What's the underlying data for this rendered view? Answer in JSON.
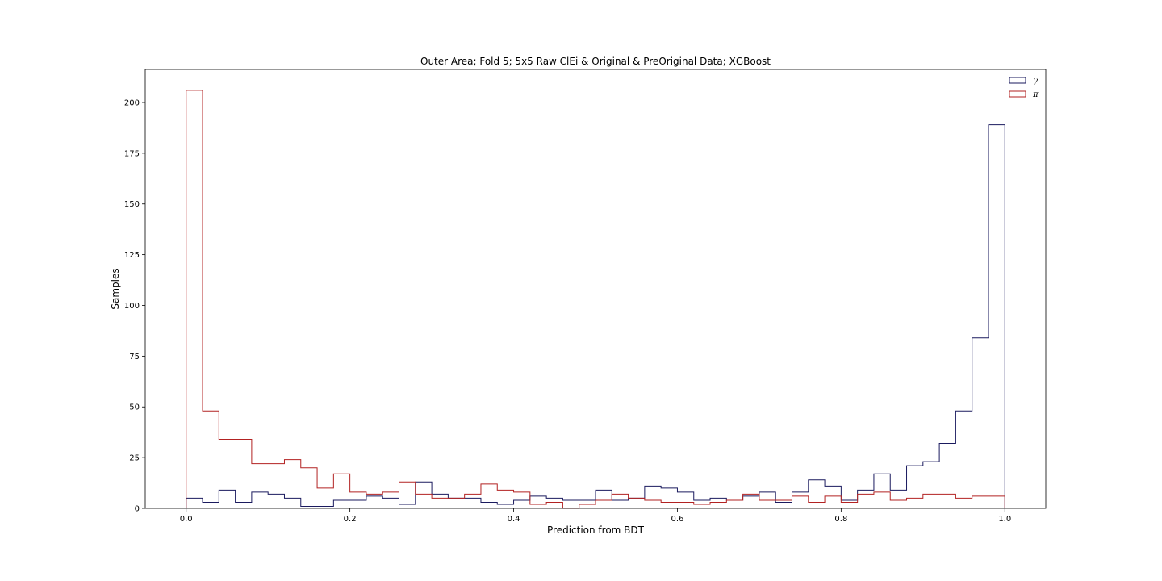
{
  "chart_data": {
    "type": "step-histogram",
    "title": "Outer Area; Fold 5; 5x5 Raw ClEi & Original & PreOriginal Data; XGBoost",
    "xlabel": "Prediction from BDT",
    "ylabel": "Samples",
    "xlim": [
      -0.05,
      1.05
    ],
    "ylim": [
      0,
      216.3
    ],
    "xticks": [
      0.0,
      0.2,
      0.4,
      0.6,
      0.8,
      1.0
    ],
    "xtick_labels": [
      "0.0",
      "0.2",
      "0.4",
      "0.6",
      "0.8",
      "1.0"
    ],
    "yticks": [
      0,
      25,
      50,
      75,
      100,
      125,
      150,
      175,
      200
    ],
    "ytick_labels": [
      "0",
      "25",
      "50",
      "75",
      "100",
      "125",
      "150",
      "175",
      "200"
    ],
    "bins": 50,
    "bin_range": [
      0.0,
      1.0
    ],
    "legend_position": "top-right",
    "series": [
      {
        "name": "γ",
        "color": "#1a1a5e",
        "values": [
          5,
          3,
          9,
          3,
          8,
          7,
          5,
          1,
          1,
          4,
          4,
          6,
          5,
          2,
          13,
          7,
          5,
          5,
          3,
          2,
          4,
          6,
          5,
          4,
          4,
          9,
          4,
          5,
          11,
          10,
          8,
          4,
          5,
          4,
          6,
          8,
          3,
          8,
          14,
          11,
          4,
          9,
          17,
          9,
          21,
          23,
          32,
          48,
          84,
          189
        ]
      },
      {
        "name": "π",
        "color": "#b22222",
        "values": [
          206,
          48,
          34,
          34,
          22,
          22,
          24,
          20,
          10,
          17,
          8,
          7,
          8,
          13,
          7,
          5,
          5,
          7,
          12,
          9,
          8,
          2,
          3,
          0,
          2,
          4,
          7,
          5,
          4,
          3,
          3,
          2,
          3,
          4,
          7,
          4,
          4,
          6,
          3,
          6,
          3,
          7,
          8,
          4,
          5,
          7,
          7,
          5,
          6,
          6
        ]
      }
    ]
  }
}
